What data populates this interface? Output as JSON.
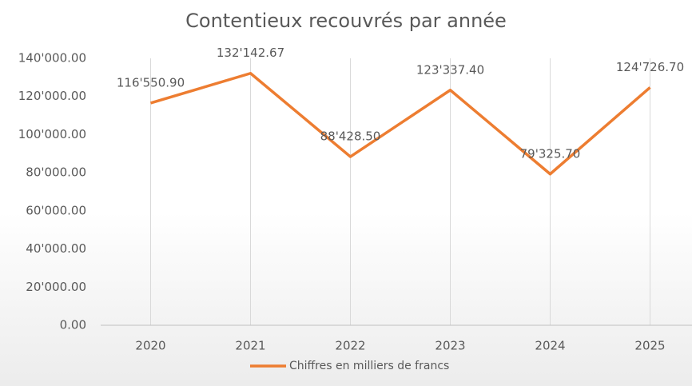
{
  "chart_data": {
    "type": "line",
    "title": "Contentieux recouvrés par année",
    "categories": [
      "2020",
      "2021",
      "2022",
      "2023",
      "2024",
      "2025"
    ],
    "series": [
      {
        "name": "Chiffres en milliers de francs",
        "color": "#ed7d31",
        "values": [
          116550.9,
          132142.67,
          88428.5,
          123337.4,
          79325.7,
          124726.7
        ],
        "value_labels": [
          "116'550.90",
          "132'142.67",
          "88'428.50",
          "123'337.40",
          "79'325.70",
          "124'726.70"
        ]
      }
    ],
    "ylim": [
      0,
      140000
    ],
    "yticks": [
      {
        "value": 0,
        "label": "0.00"
      },
      {
        "value": 20000,
        "label": "20'000.00"
      },
      {
        "value": 40000,
        "label": "40'000.00"
      },
      {
        "value": 60000,
        "label": "60'000.00"
      },
      {
        "value": 80000,
        "label": "80'000.00"
      },
      {
        "value": 100000,
        "label": "100'000.00"
      },
      {
        "value": 120000,
        "label": "120'000.00"
      },
      {
        "value": 140000,
        "label": "140'000.00"
      }
    ],
    "legend": "bottom"
  }
}
